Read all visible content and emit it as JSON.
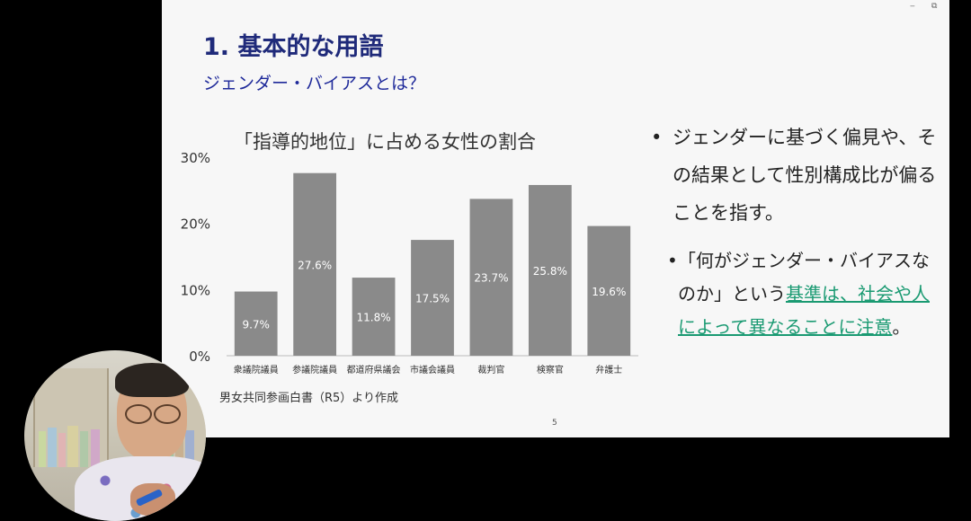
{
  "window": {
    "minimize_glyph": "‒",
    "restore_glyph": "⧉"
  },
  "slide": {
    "title": "1. 基本的な用語",
    "subtitle": "ジェンダー・バイアスとは？",
    "source": "男女共同参画白書（R5）より作成",
    "page_number": "5",
    "bullets": {
      "main_marker": "•",
      "main_text": "ジェンダーに基づく偏見や、その結果として性別構成比が偏ることを指す。",
      "sub_marker": "•",
      "sub_prefix": "「何がジェンダー・バイアスなのか」という",
      "sub_highlight": "基準は、社会や人によって異なることに注意",
      "sub_suffix": "。"
    }
  },
  "chart_data": {
    "type": "bar",
    "title": "「指導的地位」に占める女性の割合",
    "categories": [
      "衆議院議員",
      "参議院議員",
      "都道府県議会",
      "市議会議員",
      "裁判官",
      "検察官",
      "弁護士"
    ],
    "values": [
      9.7,
      27.6,
      11.8,
      17.5,
      23.7,
      25.8,
      19.6
    ],
    "value_labels": [
      "9.7%",
      "27.6%",
      "11.8%",
      "17.5%",
      "23.7%",
      "25.8%",
      "19.6%"
    ],
    "ylim": [
      0,
      30
    ],
    "yticks": [
      0,
      10,
      20,
      30
    ],
    "ytick_labels": [
      "0%",
      "10%",
      "20%",
      "30%"
    ],
    "bar_color": "#8a8a8a",
    "label_color": "#ffffff",
    "grid": false,
    "legend": "none"
  },
  "colors": {
    "title": "#1f2a7a",
    "subtitle": "#1f2a9a",
    "highlight": "#1a9a72",
    "slide_background": "#f7f7f7"
  },
  "webcam": {
    "label": "presenter-webcam"
  }
}
